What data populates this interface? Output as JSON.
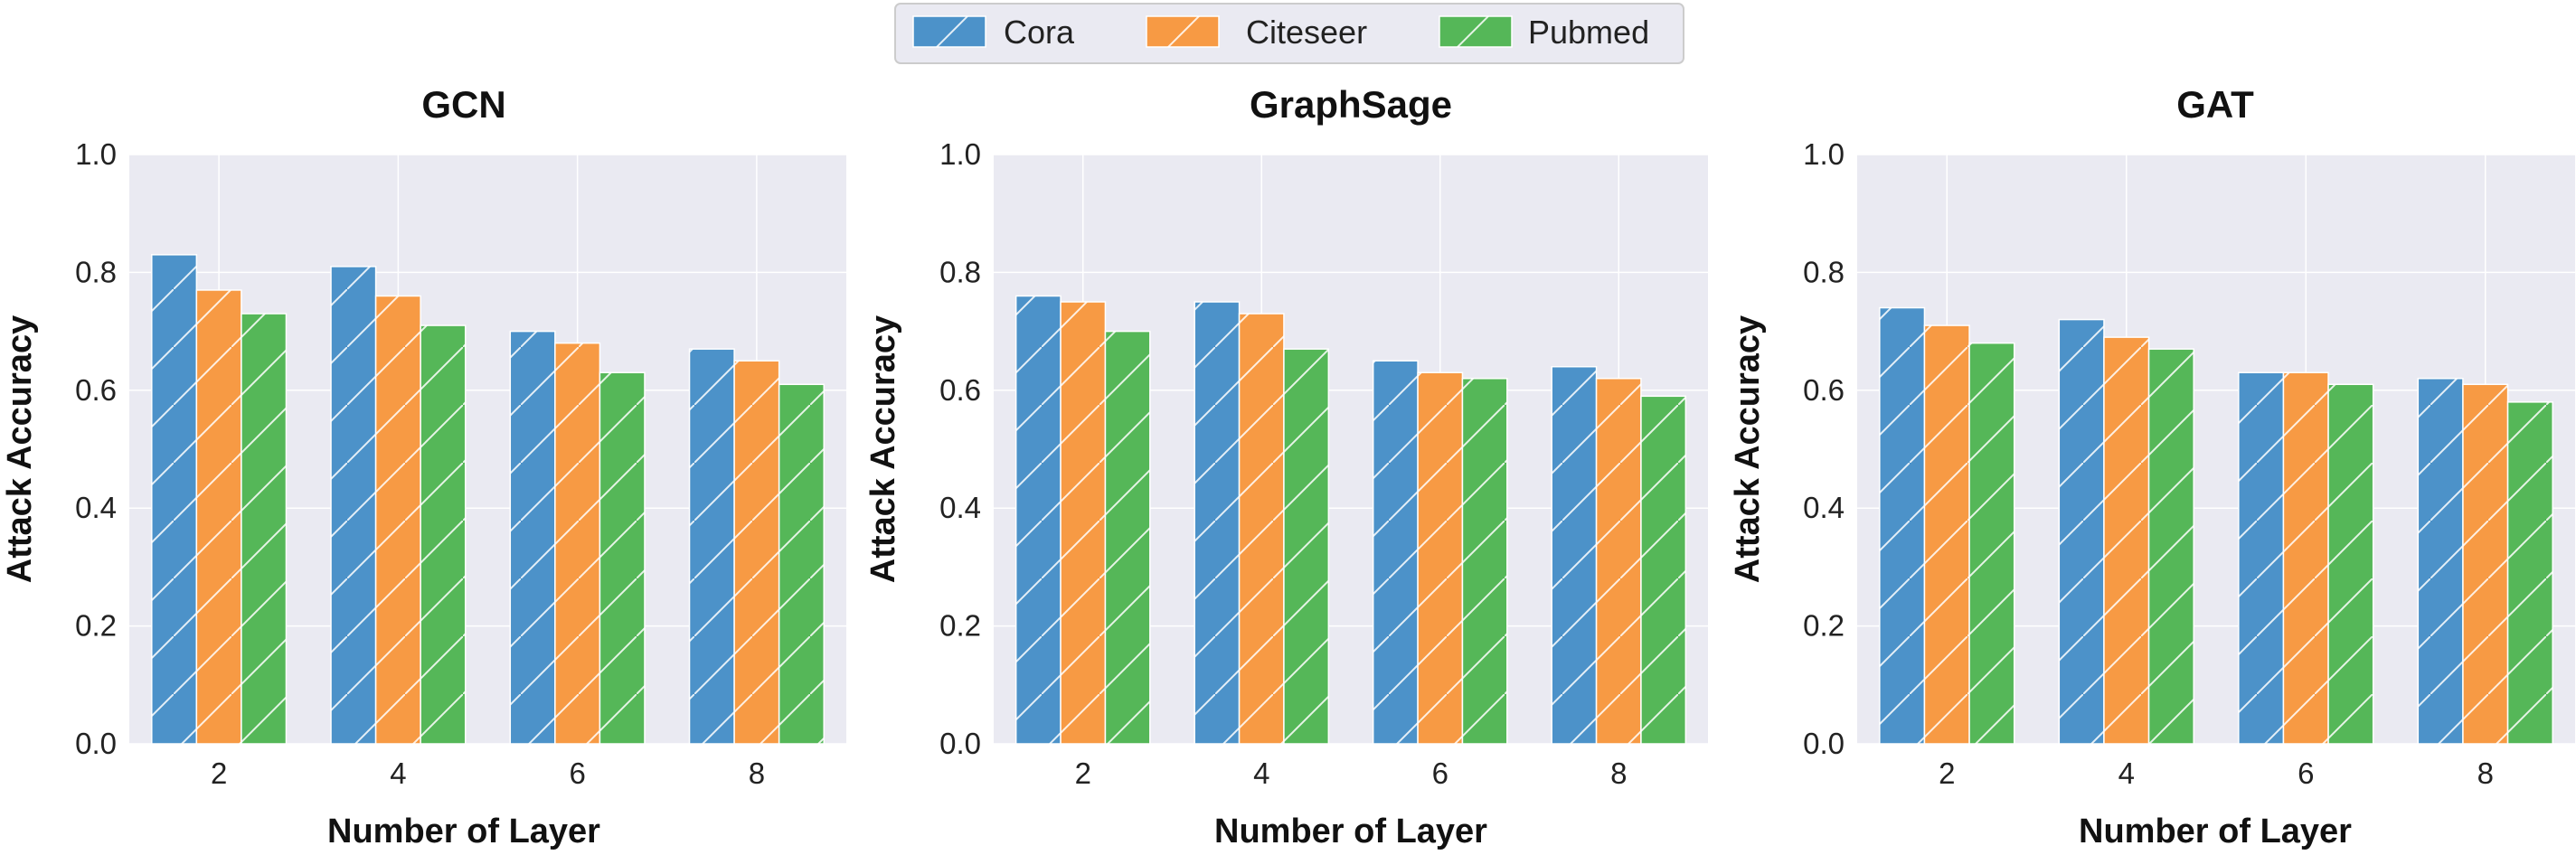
{
  "colors": {
    "Cora": "#4c92c9",
    "Citeseer": "#f79a44",
    "Pubmed": "#55b758",
    "plot_bg": "#eaeaf2",
    "grid": "#ffffff"
  },
  "legend": {
    "placement": "top-center",
    "items": [
      "Cora",
      "Citeseer",
      "Pubmed"
    ]
  },
  "chart_data": [
    {
      "type": "bar",
      "title": "GCN",
      "xlabel": "Number of Layer",
      "ylabel": "Attack Accuracy",
      "categories": [
        "2",
        "4",
        "6",
        "8"
      ],
      "ylim": [
        0,
        1.0
      ],
      "yticks": [
        "0.0",
        "0.2",
        "0.4",
        "0.6",
        "0.8",
        "1.0"
      ],
      "grid": true,
      "series": [
        {
          "name": "Cora",
          "values": [
            0.83,
            0.81,
            0.7,
            0.67
          ]
        },
        {
          "name": "Citeseer",
          "values": [
            0.77,
            0.76,
            0.68,
            0.65
          ]
        },
        {
          "name": "Pubmed",
          "values": [
            0.73,
            0.71,
            0.63,
            0.61
          ]
        }
      ]
    },
    {
      "type": "bar",
      "title": "GraphSage",
      "xlabel": "Number of Layer",
      "ylabel": "Attack Accuracy",
      "categories": [
        "2",
        "4",
        "6",
        "8"
      ],
      "ylim": [
        0,
        1.0
      ],
      "yticks": [
        "0.0",
        "0.2",
        "0.4",
        "0.6",
        "0.8",
        "1.0"
      ],
      "grid": true,
      "series": [
        {
          "name": "Cora",
          "values": [
            0.76,
            0.75,
            0.65,
            0.64
          ]
        },
        {
          "name": "Citeseer",
          "values": [
            0.75,
            0.73,
            0.63,
            0.62
          ]
        },
        {
          "name": "Pubmed",
          "values": [
            0.7,
            0.67,
            0.62,
            0.59
          ]
        }
      ]
    },
    {
      "type": "bar",
      "title": "GAT",
      "xlabel": "Number of Layer",
      "ylabel": "Attack Accuracy",
      "categories": [
        "2",
        "4",
        "6",
        "8"
      ],
      "ylim": [
        0,
        1.0
      ],
      "yticks": [
        "0.0",
        "0.2",
        "0.4",
        "0.6",
        "0.8",
        "1.0"
      ],
      "grid": true,
      "series": [
        {
          "name": "Cora",
          "values": [
            0.74,
            0.72,
            0.63,
            0.62
          ]
        },
        {
          "name": "Citeseer",
          "values": [
            0.71,
            0.69,
            0.63,
            0.61
          ]
        },
        {
          "name": "Pubmed",
          "values": [
            0.68,
            0.67,
            0.61,
            0.58
          ]
        }
      ]
    }
  ]
}
